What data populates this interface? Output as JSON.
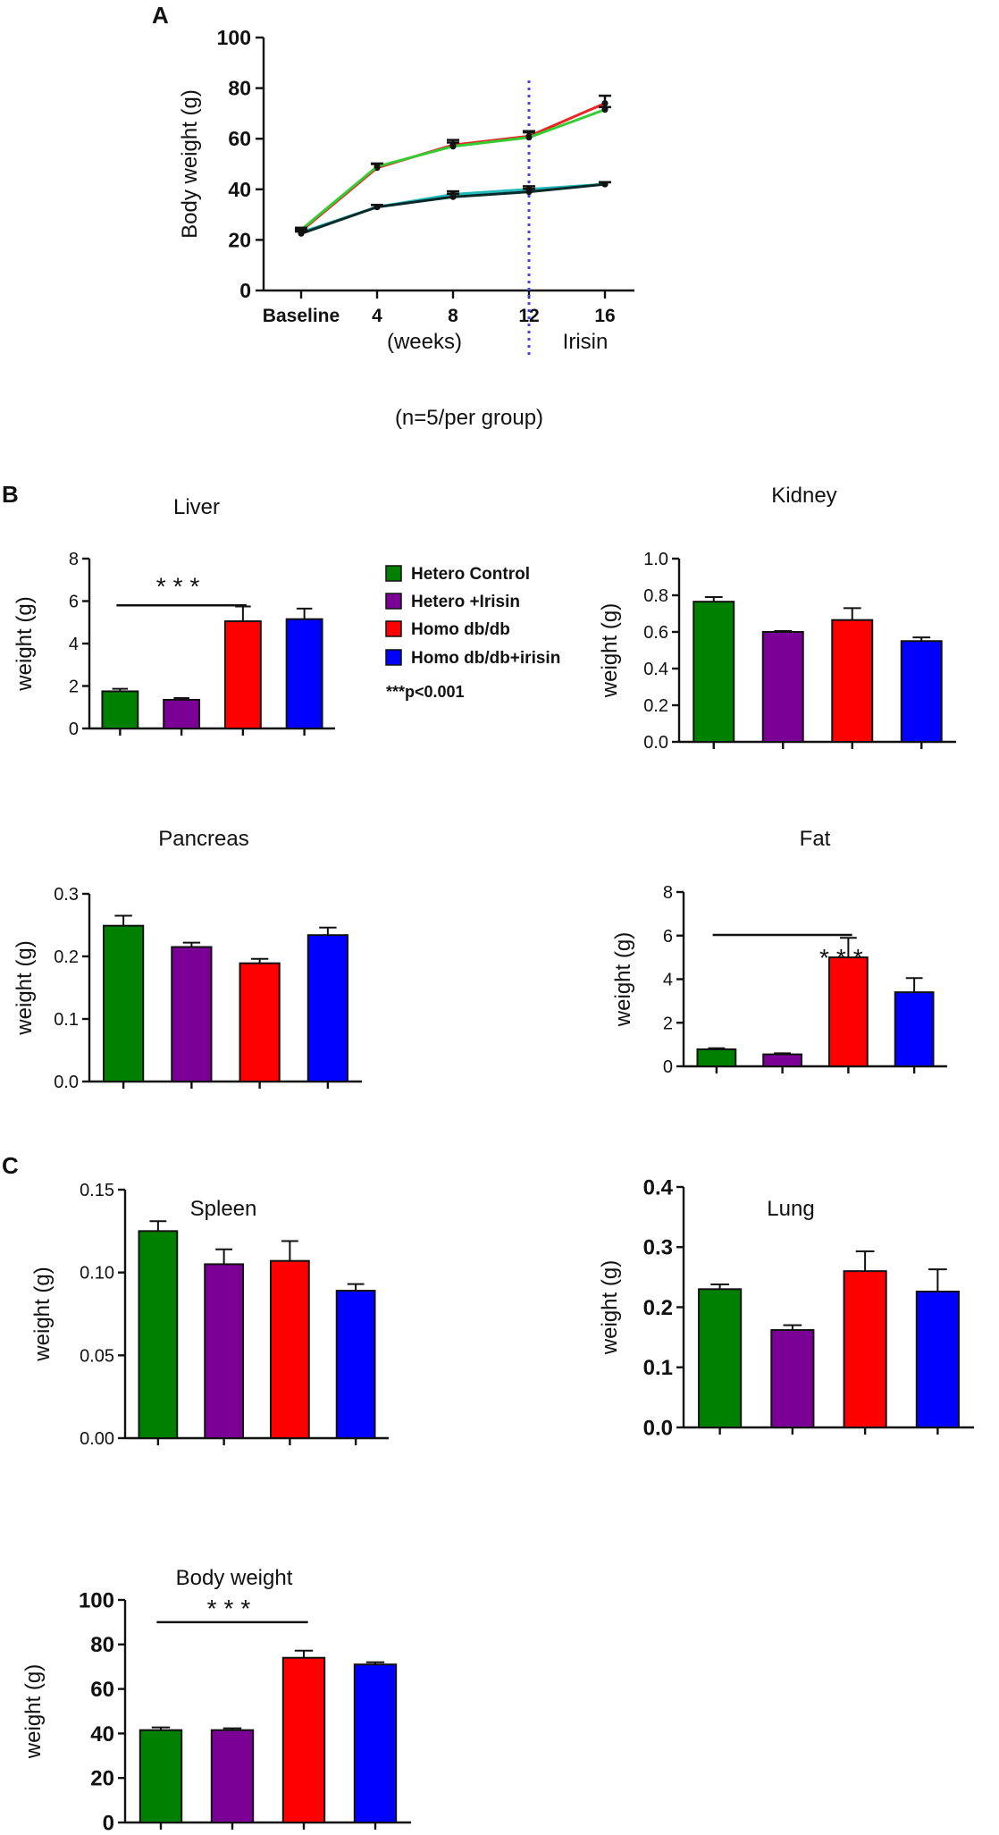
{
  "colors": {
    "hetero_control": "#008000",
    "hetero_irisin": "#7B0096",
    "homo_dbdb": "#FF0000",
    "homo_dbdb_irisin": "#0000FF",
    "line_green": "#33CC33",
    "line_red": "#EE2222",
    "line_cyan": "#22BBBB",
    "line_black": "#0A2A2A",
    "irisin_marker": "#4040FF"
  },
  "panel_labels": {
    "a": "A",
    "b": "B",
    "c": "C"
  },
  "legend": {
    "items": [
      {
        "label": "Hetero Control",
        "color": "#008000"
      },
      {
        "label": "Hetero +Irisin",
        "color": "#7B0096"
      },
      {
        "label": "Homo db/db",
        "color": "#FF0000"
      },
      {
        "label": "Homo db/db+irisin",
        "color": "#0000FF"
      }
    ],
    "note": "***p<0.001"
  },
  "chart_data": [
    {
      "id": "bodyweight-time",
      "type": "line",
      "title": "",
      "ylabel": "Body weight (g)",
      "xlabel": "(weeks)",
      "categories": [
        "Baseline",
        "4",
        "8",
        "12",
        "16"
      ],
      "yticks": [
        "0",
        "20",
        "40",
        "60",
        "80",
        "100"
      ],
      "ylim": [
        0,
        100
      ],
      "marker_label": "Irisin",
      "marker_at": "12",
      "footnote": "(n=5/per group)",
      "series": [
        {
          "name": "Hetero Control",
          "color": "#22BBBB",
          "values": [
            23,
            33,
            38,
            40,
            42
          ],
          "errors": [
            0.8,
            0.8,
            1.2,
            1.2,
            0.8
          ]
        },
        {
          "name": "Hetero +Irisin",
          "color": "#0A2A2A",
          "values": [
            22.5,
            33,
            37,
            39,
            42
          ],
          "errors": [
            0.8,
            0.8,
            1.2,
            1.2,
            0.8
          ]
        },
        {
          "name": "Homo db/db",
          "color": "#EE2222",
          "values": [
            23.5,
            48.5,
            57.5,
            61,
            74
          ],
          "errors": [
            0.8,
            1.5,
            2,
            2,
            3
          ]
        },
        {
          "name": "Homo db/db+irisin",
          "color": "#33CC33",
          "values": [
            24,
            49,
            57,
            60.5,
            71.5
          ],
          "errors": [
            0.8,
            1.2,
            1.5,
            2,
            1
          ]
        }
      ]
    },
    {
      "id": "liver",
      "type": "bar",
      "title": "Liver",
      "ylabel": "weight (g)",
      "ylim": [
        0,
        8
      ],
      "yticks": [
        "0",
        "2",
        "4",
        "6",
        "8"
      ],
      "values": [
        1.75,
        1.35,
        5.05,
        5.15
      ],
      "errors": [
        0.12,
        0.08,
        0.7,
        0.5
      ],
      "annotation": "***",
      "sig_bar": [
        1,
        3
      ]
    },
    {
      "id": "kidney",
      "type": "bar",
      "title": "Kidney",
      "ylabel": "weight (g)",
      "ylim": [
        0,
        1.0
      ],
      "yticks": [
        "0.0",
        "0.2",
        "0.4",
        "0.6",
        "0.8",
        "1.0"
      ],
      "values": [
        0.765,
        0.6,
        0.665,
        0.55
      ],
      "errors": [
        0.025,
        0.005,
        0.065,
        0.02
      ]
    },
    {
      "id": "pancreas",
      "type": "bar",
      "title": "Pancreas",
      "ylabel": "weight (g)",
      "ylim": [
        0,
        0.3
      ],
      "yticks": [
        "0.0",
        "0.1",
        "0.2",
        "0.3"
      ],
      "values": [
        0.249,
        0.215,
        0.189,
        0.234
      ],
      "errors": [
        0.016,
        0.007,
        0.007,
        0.012
      ]
    },
    {
      "id": "fat",
      "type": "bar",
      "title": "Fat",
      "ylabel": "weight (g)",
      "ylim": [
        0,
        8
      ],
      "yticks": [
        "0",
        "2",
        "4",
        "6",
        "8"
      ],
      "values": [
        0.78,
        0.55,
        5.0,
        3.4
      ],
      "errors": [
        0.05,
        0.05,
        0.9,
        0.65
      ],
      "annotation": "***",
      "sig_bar": [
        1,
        3
      ]
    },
    {
      "id": "spleen",
      "type": "bar",
      "title": "Spleen",
      "ylabel": "weight (g)",
      "ylim": [
        0,
        0.15
      ],
      "yticks": [
        "0.00",
        "0.05",
        "0.10",
        "0.15"
      ],
      "values": [
        0.125,
        0.105,
        0.107,
        0.089
      ],
      "errors": [
        0.006,
        0.009,
        0.012,
        0.004
      ]
    },
    {
      "id": "lung",
      "type": "bar",
      "title": "Lung",
      "ylabel": "weight (g)",
      "ylim": [
        0,
        0.4
      ],
      "yticks": [
        "0.0",
        "0.1",
        "0.2",
        "0.3",
        "0.4"
      ],
      "values": [
        0.23,
        0.162,
        0.26,
        0.226
      ],
      "errors": [
        0.008,
        0.008,
        0.033,
        0.037
      ]
    },
    {
      "id": "bodyweight-bar",
      "type": "bar",
      "title": "Body weight",
      "ylabel": "weight (g)",
      "ylim": [
        0,
        100
      ],
      "yticks": [
        "0",
        "20",
        "40",
        "60",
        "80",
        "100"
      ],
      "values": [
        41.5,
        41.5,
        74,
        71
      ],
      "errors": [
        1.2,
        0.8,
        3.2,
        1.0
      ],
      "annotation": "***",
      "sig_bar": [
        1,
        3
      ]
    }
  ]
}
